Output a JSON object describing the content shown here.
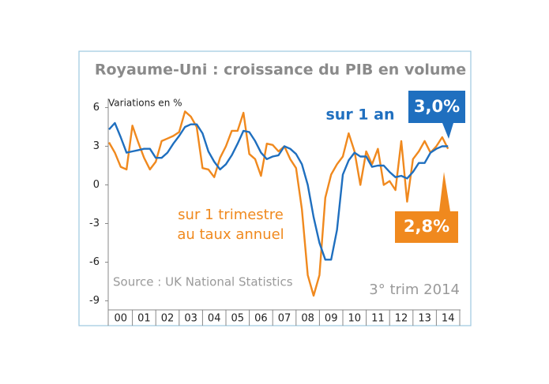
{
  "chart_data": {
    "type": "line",
    "title": "Royaume-Uni : croissance du PIB en volume",
    "y_label": "Variations en %",
    "source": "Source : UK National Statistics",
    "period": "3° trim 2014",
    "x": [
      2000,
      2000.25,
      2000.5,
      2000.75,
      2001,
      2001.25,
      2001.5,
      2001.75,
      2002,
      2002.25,
      2002.5,
      2002.75,
      2003,
      2003.25,
      2003.5,
      2003.75,
      2004,
      2004.25,
      2004.5,
      2004.75,
      2005,
      2005.25,
      2005.5,
      2005.75,
      2006,
      2006.25,
      2006.5,
      2006.75,
      2007,
      2007.25,
      2007.5,
      2007.75,
      2008,
      2008.25,
      2008.5,
      2008.75,
      2009,
      2009.25,
      2009.5,
      2009.75,
      2010,
      2010.25,
      2010.5,
      2010.75,
      2011,
      2011.25,
      2011.5,
      2011.75,
      2012,
      2012.25,
      2012.5,
      2012.75,
      2013,
      2013.25,
      2013.5,
      2013.75,
      2014,
      2014.25,
      2014.5
    ],
    "xlim": [
      2000,
      2015
    ],
    "xticks": [
      {
        "value": 2000.5,
        "label": "00"
      },
      {
        "value": 2001.5,
        "label": "01"
      },
      {
        "value": 2002.5,
        "label": "02"
      },
      {
        "value": 2003.5,
        "label": "03"
      },
      {
        "value": 2004.5,
        "label": "04"
      },
      {
        "value": 2005.5,
        "label": "05"
      },
      {
        "value": 2006.5,
        "label": "06"
      },
      {
        "value": 2007.5,
        "label": "07"
      },
      {
        "value": 2008.5,
        "label": "08"
      },
      {
        "value": 2009.5,
        "label": "09"
      },
      {
        "value": 2010.5,
        "label": "10"
      },
      {
        "value": 2011.5,
        "label": "11"
      },
      {
        "value": 2012.5,
        "label": "12"
      },
      {
        "value": 2013.5,
        "label": "13"
      },
      {
        "value": 2014.5,
        "label": "14"
      }
    ],
    "ylim": [
      -9.7,
      6.7
    ],
    "yticks": [
      -9,
      -6,
      -3,
      0,
      3,
      6
    ],
    "series": [
      {
        "name": "sur 1 an",
        "color": "#1f6fbf",
        "end_label": "3,0%",
        "values": [
          4.3,
          4.8,
          3.7,
          2.5,
          2.6,
          2.7,
          2.8,
          2.8,
          2.1,
          2.1,
          2.5,
          3.2,
          3.8,
          4.5,
          4.7,
          4.7,
          4.0,
          2.6,
          1.8,
          1.2,
          1.6,
          2.3,
          3.2,
          4.2,
          4.1,
          3.4,
          2.5,
          2.0,
          2.2,
          2.3,
          3.0,
          2.8,
          2.4,
          1.6,
          0.0,
          -2.5,
          -4.5,
          -5.8,
          -5.8,
          -3.5,
          0.8,
          1.9,
          2.5,
          2.2,
          2.2,
          1.4,
          1.5,
          1.5,
          1.0,
          0.6,
          0.7,
          0.5,
          1.0,
          1.7,
          1.7,
          2.5,
          2.8,
          3.0,
          3.0
        ]
      },
      {
        "name": [
          "sur 1 trimestre",
          "au taux annuel"
        ],
        "color": "#f0891e",
        "end_label": "2,8%",
        "values": [
          3.3,
          2.5,
          1.4,
          1.2,
          4.6,
          3.3,
          2.1,
          1.2,
          1.8,
          3.4,
          3.6,
          3.8,
          4.1,
          5.7,
          5.3,
          4.5,
          1.3,
          1.2,
          0.6,
          2.1,
          3.0,
          4.2,
          4.2,
          5.6,
          2.4,
          2.0,
          0.7,
          3.2,
          3.1,
          2.6,
          3.0,
          2.0,
          1.3,
          -1.9,
          -7.0,
          -8.6,
          -7.0,
          -1.0,
          0.8,
          1.6,
          2.2,
          4.0,
          2.6,
          0.0,
          2.6,
          1.6,
          2.8,
          0.0,
          0.3,
          -0.4,
          3.4,
          -1.3,
          2.0,
          2.6,
          3.4,
          2.5,
          3.0,
          3.7,
          2.8
        ]
      }
    ]
  }
}
